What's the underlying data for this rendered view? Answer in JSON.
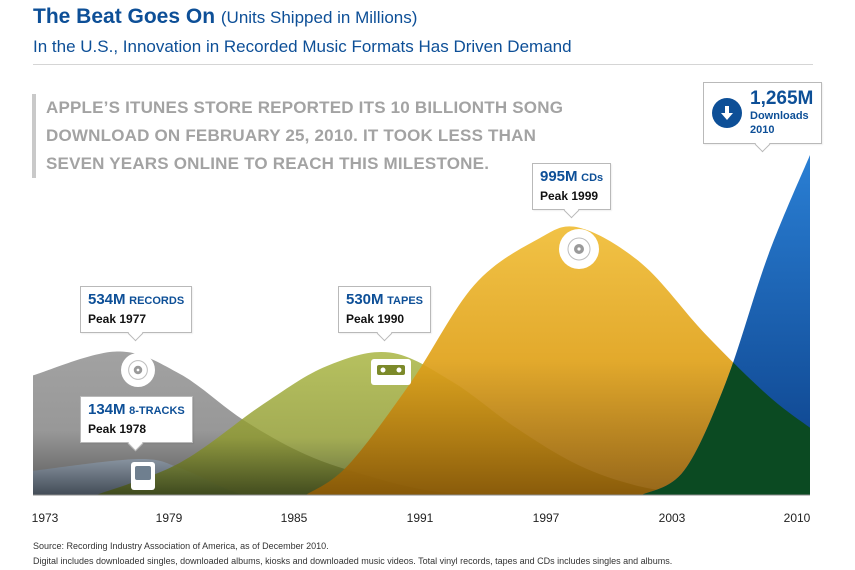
{
  "header": {
    "title": "The Beat Goes On",
    "title_units": "(Units Shipped in Millions)",
    "subtitle": "In the U.S., Innovation in Recorded Music Formats Has Driven Demand"
  },
  "note": {
    "line1": "APPLE’S ITUNES STORE REPORTED ITS 10 BILLIONTH SONG",
    "line2": "DOWNLOAD ON FEBRUARY 25, 2010. IT TOOK LESS THAN",
    "line3": "SEVEN YEARS ONLINE TO REACH THIS MILESTONE."
  },
  "callouts": {
    "records": {
      "value": "534M",
      "unit": "RECORDS",
      "peak": "Peak 1977"
    },
    "eight_tracks": {
      "value": "134M",
      "unit": "8-TRACKS",
      "peak": "Peak 1978"
    },
    "tapes": {
      "value": "530M",
      "unit": "TAPES",
      "peak": "Peak 1990"
    },
    "cds": {
      "value": "995M",
      "unit": "CDs",
      "peak": "Peak 1999"
    },
    "downloads": {
      "value": "1,265M",
      "unit": "Downloads",
      "year": "2010"
    }
  },
  "x_ticks": [
    "1973",
    "1979",
    "1985",
    "1991",
    "1997",
    "2003",
    "2010"
  ],
  "footer": {
    "source": "Source: Recording Industry Association of America, as of December 2010.",
    "note": "Digital includes downloaded singles, downloaded albums, kiosks and downloaded music videos. Total vinyl records, tapes and CDs includes singles and albums."
  },
  "colors": {
    "records": "#8f8f8f",
    "eight_tracks": "#6f7f8f",
    "tapes": "#8f9a2e",
    "cds": "#e0a21a",
    "downloads": "#1762b8",
    "downloads_overlap": "#0b4a22",
    "title": "#0d4f97"
  },
  "chart_data": {
    "type": "area",
    "title": "The Beat Goes On (Units Shipped in Millions)",
    "xlim": [
      1973,
      2010
    ],
    "ylim": [
      0,
      1300
    ],
    "series": [
      {
        "name": "RECORDS",
        "peak_year": 1977,
        "peak_value": 534,
        "points": [
          [
            1973,
            445
          ],
          [
            1977,
            534
          ],
          [
            1980,
            450
          ],
          [
            1983,
            280
          ],
          [
            1986,
            150
          ],
          [
            1989,
            70
          ],
          [
            1992,
            15
          ],
          [
            1995,
            0
          ]
        ]
      },
      {
        "name": "8-TRACKS",
        "peak_year": 1978,
        "peak_value": 134,
        "points": [
          [
            1973,
            90
          ],
          [
            1978,
            134
          ],
          [
            1980,
            100
          ],
          [
            1982,
            30
          ],
          [
            1983,
            0
          ]
        ]
      },
      {
        "name": "TAPES",
        "peak_year": 1990,
        "peak_value": 530,
        "points": [
          [
            1976,
            0
          ],
          [
            1980,
            120
          ],
          [
            1984,
            340
          ],
          [
            1987,
            480
          ],
          [
            1990,
            530
          ],
          [
            1993,
            420
          ],
          [
            1996,
            250
          ],
          [
            1999,
            110
          ],
          [
            2002,
            30
          ],
          [
            2005,
            0
          ]
        ]
      },
      {
        "name": "CDs",
        "peak_year": 1999,
        "peak_value": 995,
        "points": [
          [
            1986,
            0
          ],
          [
            1988,
            110
          ],
          [
            1991,
            420
          ],
          [
            1994,
            780
          ],
          [
            1997,
            950
          ],
          [
            1999,
            995
          ],
          [
            2002,
            860
          ],
          [
            2005,
            600
          ],
          [
            2008,
            370
          ],
          [
            2010,
            250
          ]
        ]
      },
      {
        "name": "Downloads",
        "peak_year": 2010,
        "peak_value": 1265,
        "points": [
          [
            2002,
            0
          ],
          [
            2004,
            90
          ],
          [
            2006,
            420
          ],
          [
            2008,
            890
          ],
          [
            2010,
            1265
          ]
        ]
      }
    ]
  }
}
